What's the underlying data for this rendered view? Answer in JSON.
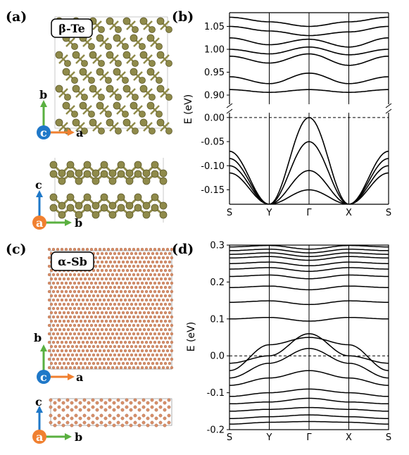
{
  "panels": {
    "a": {
      "label": "(a)",
      "material": "β-Te"
    },
    "b": {
      "label": "(b)"
    },
    "c": {
      "label": "(c)",
      "material": "α-Sb"
    },
    "d": {
      "label": "(d)"
    }
  },
  "axes_triads": {
    "top_a": [
      "b",
      "c",
      "a"
    ],
    "side_a": [
      "c",
      "a",
      "b"
    ],
    "top_c": [
      "b",
      "c",
      "a"
    ],
    "side_c": [
      "c",
      "a",
      "b"
    ]
  },
  "colors": {
    "te_atom": "#8f8a4a",
    "sb_atom": "#d9916a",
    "axis_a": "#f08030",
    "axis_b": "#5ab040",
    "axis_c": "#1f78c8"
  },
  "chart_data": [
    {
      "type": "line",
      "panel": "(b)",
      "ylabel": "E (eV)",
      "x_ticks": [
        "S",
        "Y",
        "Γ",
        "X",
        "S"
      ],
      "y_ticks_upper": [
        "0.90",
        "0.95",
        "1.00",
        "1.05"
      ],
      "y_ticks_lower": [
        "-0.15",
        "-0.10",
        "-0.05",
        "0.00"
      ],
      "ylim_upper": [
        0.88,
        1.08
      ],
      "ylim_lower": [
        -0.18,
        0.01
      ],
      "broken_axis": true,
      "fermi_level": 0.0,
      "conduction_bands": [
        {
          "x": [
            0,
            1,
            2,
            3,
            4
          ],
          "y": [
            0.912,
            0.906,
            0.912,
            0.906,
            0.912
          ]
        },
        {
          "x": [
            0,
            1,
            2,
            3,
            4
          ],
          "y": [
            0.94,
            0.925,
            0.948,
            0.925,
            0.94
          ]
        },
        {
          "x": [
            0,
            1,
            2,
            3,
            4
          ],
          "y": [
            0.985,
            0.97,
            0.99,
            0.965,
            0.985
          ]
        },
        {
          "x": [
            0,
            1,
            2,
            3,
            4
          ],
          "y": [
            1.0,
            0.99,
            1.005,
            0.988,
            1.0
          ]
        },
        {
          "x": [
            0,
            1,
            2,
            3,
            4
          ],
          "y": [
            1.025,
            1.01,
            1.022,
            1.005,
            1.025
          ]
        },
        {
          "x": [
            0,
            1,
            2,
            3,
            4
          ],
          "y": [
            1.05,
            1.04,
            1.03,
            1.038,
            1.05
          ]
        },
        {
          "x": [
            0,
            1,
            2,
            3,
            4
          ],
          "y": [
            1.07,
            1.06,
            1.05,
            1.06,
            1.07
          ]
        }
      ],
      "valence_bands": [
        {
          "x": [
            0,
            1,
            2,
            3,
            4
          ],
          "y": [
            -0.07,
            -0.18,
            0.0,
            -0.18,
            -0.07
          ]
        },
        {
          "x": [
            0,
            1,
            2,
            3,
            4
          ],
          "y": [
            -0.085,
            -0.18,
            -0.05,
            -0.18,
            -0.085
          ]
        },
        {
          "x": [
            0,
            1,
            2,
            3,
            4
          ],
          "y": [
            -0.1,
            -0.18,
            -0.11,
            -0.18,
            -0.1
          ]
        },
        {
          "x": [
            0,
            1,
            2,
            3,
            4
          ],
          "y": [
            -0.115,
            -0.18,
            -0.15,
            -0.18,
            -0.115
          ]
        }
      ]
    },
    {
      "type": "line",
      "panel": "(d)",
      "ylabel": "E (eV)",
      "x_ticks": [
        "S",
        "Y",
        "Γ",
        "X",
        "S"
      ],
      "y_ticks": [
        "-0.2",
        "-0.1",
        "0.0",
        "0.1",
        "0.2",
        "0.3"
      ],
      "ylim": [
        -0.2,
        0.3
      ],
      "fermi_level": 0.0,
      "flat_bands": [
        0.1,
        0.145,
        0.185,
        0.215,
        0.235,
        0.25,
        0.265,
        0.275,
        0.285,
        0.295
      ],
      "valence_bands": [
        {
          "x": [
            0,
            1,
            2,
            3,
            4
          ],
          "y": [
            -0.02,
            0.0,
            0.06,
            0.0,
            -0.02
          ]
        },
        {
          "x": [
            0,
            1,
            2,
            3,
            4
          ],
          "y": [
            -0.04,
            0.03,
            0.05,
            0.03,
            -0.04
          ]
        },
        {
          "x": [
            0,
            1,
            2,
            3,
            4
          ],
          "y": [
            -0.06,
            -0.02,
            0.02,
            -0.02,
            -0.06
          ]
        },
        {
          "x": [
            0,
            1,
            2,
            3,
            4
          ],
          "y": [
            -0.08,
            -0.06,
            -0.04,
            -0.06,
            -0.08
          ]
        },
        {
          "x": [
            0,
            1,
            2,
            3,
            4
          ],
          "y": [
            -0.11,
            -0.1,
            -0.09,
            -0.1,
            -0.11
          ]
        },
        {
          "x": [
            0,
            1,
            2,
            3,
            4
          ],
          "y": [
            -0.13,
            -0.125,
            -0.115,
            -0.125,
            -0.13
          ]
        },
        {
          "x": [
            0,
            1,
            2,
            3,
            4
          ],
          "y": [
            -0.15,
            -0.145,
            -0.14,
            -0.145,
            -0.15
          ]
        },
        {
          "x": [
            0,
            1,
            2,
            3,
            4
          ],
          "y": [
            -0.17,
            -0.165,
            -0.16,
            -0.165,
            -0.17
          ]
        },
        {
          "x": [
            0,
            1,
            2,
            3,
            4
          ],
          "y": [
            -0.185,
            -0.18,
            -0.178,
            -0.18,
            -0.185
          ]
        }
      ]
    }
  ]
}
